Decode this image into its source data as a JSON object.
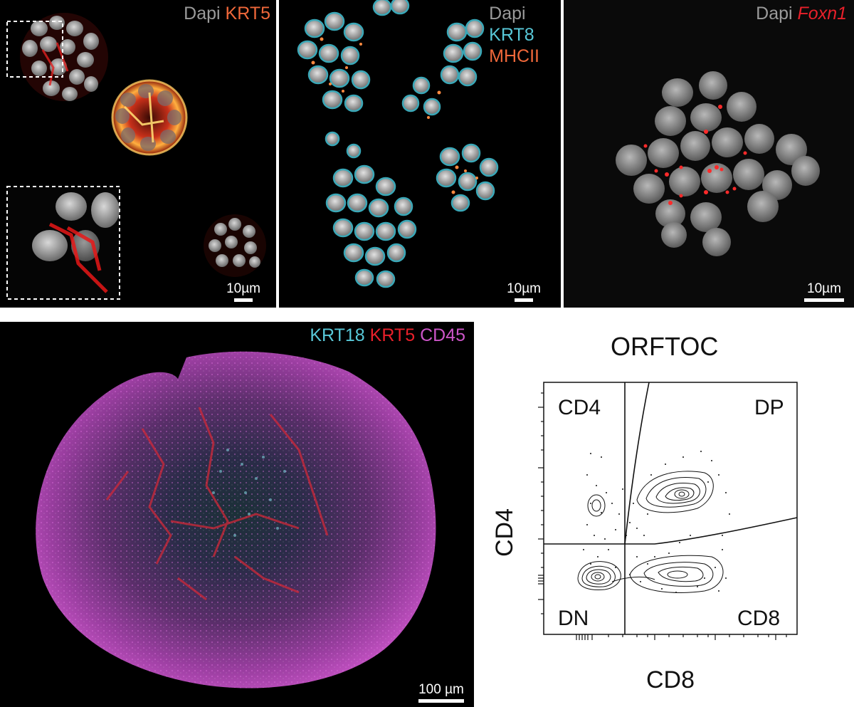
{
  "panels": {
    "krt5": {
      "labels": {
        "dapi": "Dapi",
        "marker": "KRT5"
      },
      "scale_bar": "10µm"
    },
    "krt8": {
      "labels": {
        "dapi": "Dapi",
        "marker1": "KRT8",
        "marker2": "MHCII"
      },
      "scale_bar": "10µm"
    },
    "foxn1": {
      "labels": {
        "dapi": "Dapi",
        "marker": "Foxn1"
      },
      "scale_bar": "10µm"
    },
    "organoid": {
      "labels": {
        "m1": "KRT18",
        "m2": "KRT5",
        "m3": "CD45"
      },
      "scale_bar": "100 µm"
    }
  },
  "flow": {
    "title": "ORFTOC",
    "xlabel": "CD8",
    "ylabel": "CD4",
    "quadrants": {
      "ul": "CD4",
      "ur": "DP",
      "ll": "DN",
      "lr": "CD8"
    }
  },
  "colors": {
    "orange": "#f0683a",
    "cyan": "#58c8d8",
    "red": "#e8202a",
    "magenta": "#cc55c8",
    "grey": "#9a9a9a"
  }
}
